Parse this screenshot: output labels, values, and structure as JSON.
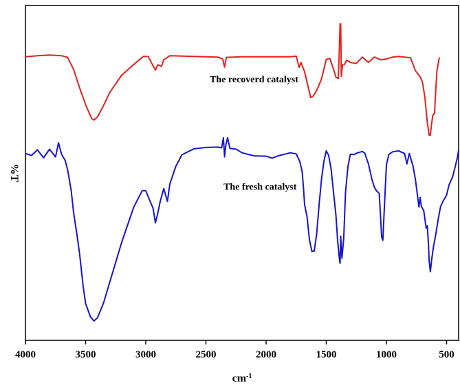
{
  "chart_data": {
    "type": "line",
    "title": "",
    "xlabel": "cm",
    "xlabel_superscript": "-1",
    "ylabel": "%T",
    "xlim": [
      4000,
      400
    ],
    "x_reversed": true,
    "y_ticks_shown": false,
    "grid": false,
    "legend": "none",
    "x_ticks": [
      4000,
      3500,
      3000,
      2500,
      2000,
      1500,
      1000,
      500
    ],
    "x_tick_labels": [
      "4000",
      "3500",
      "3000",
      "2500",
      "2000",
      "1500",
      "1000",
      "500"
    ],
    "ylim": [
      0,
      100
    ],
    "annotations": [
      {
        "text": "The recoverd catalyst",
        "x": 2100,
        "y": 77
      },
      {
        "text": "The fresh catalyst",
        "x": 2050,
        "y": 45
      }
    ],
    "series": [
      {
        "color": "#e8201c",
        "points": [
          [
            4000,
            84.7
          ],
          [
            3900,
            85.0
          ],
          [
            3800,
            85.2
          ],
          [
            3700,
            85.0
          ],
          [
            3650,
            84.5
          ],
          [
            3600,
            80.9
          ],
          [
            3550,
            75.4
          ],
          [
            3500,
            70.4
          ],
          [
            3450,
            66.2
          ],
          [
            3430,
            65.8
          ],
          [
            3400,
            66.8
          ],
          [
            3350,
            70.2
          ],
          [
            3300,
            74.0
          ],
          [
            3200,
            79.2
          ],
          [
            3100,
            82.4
          ],
          [
            3020,
            84.8
          ],
          [
            2980,
            84.8
          ],
          [
            2950,
            82.7
          ],
          [
            2920,
            80.7
          ],
          [
            2900,
            82.3
          ],
          [
            2870,
            81.8
          ],
          [
            2850,
            83.8
          ],
          [
            2800,
            85.0
          ],
          [
            2600,
            84.8
          ],
          [
            2400,
            84.6
          ],
          [
            2360,
            84.0
          ],
          [
            2345,
            81.6
          ],
          [
            2330,
            84.5
          ],
          [
            2200,
            84.7
          ],
          [
            2000,
            84.7
          ],
          [
            1800,
            84.7
          ],
          [
            1750,
            84.9
          ],
          [
            1725,
            81.5
          ],
          [
            1710,
            83.0
          ],
          [
            1680,
            80.2
          ],
          [
            1650,
            75.6
          ],
          [
            1630,
            72.5
          ],
          [
            1610,
            72.9
          ],
          [
            1590,
            74.0
          ],
          [
            1570,
            75.4
          ],
          [
            1540,
            78.0
          ],
          [
            1500,
            83.9
          ],
          [
            1470,
            84.2
          ],
          [
            1440,
            81.0
          ],
          [
            1420,
            78.6
          ],
          [
            1400,
            78.2
          ],
          [
            1395,
            83.0
          ],
          [
            1385,
            94.5
          ],
          [
            1380,
            94.5
          ],
          [
            1375,
            78.8
          ],
          [
            1365,
            82.3
          ],
          [
            1350,
            82.3
          ],
          [
            1330,
            83.7
          ],
          [
            1300,
            83.0
          ],
          [
            1250,
            82.7
          ],
          [
            1200,
            84.6
          ],
          [
            1150,
            83.0
          ],
          [
            1100,
            84.6
          ],
          [
            1050,
            83.8
          ],
          [
            1000,
            84.0
          ],
          [
            950,
            84.6
          ],
          [
            900,
            84.8
          ],
          [
            850,
            84.6
          ],
          [
            800,
            84.4
          ],
          [
            760,
            80.6
          ],
          [
            720,
            78.7
          ],
          [
            700,
            77.0
          ],
          [
            680,
            72.5
          ],
          [
            660,
            65.0
          ],
          [
            645,
            61.3
          ],
          [
            635,
            61.2
          ],
          [
            625,
            64.5
          ],
          [
            615,
            67.2
          ],
          [
            600,
            67.9
          ],
          [
            590,
            75.0
          ],
          [
            580,
            80.6
          ],
          [
            560,
            84.5
          ]
        ]
      },
      {
        "color": "#1414d4",
        "points": [
          [
            4000,
            55.8
          ],
          [
            3950,
            55.2
          ],
          [
            3900,
            56.9
          ],
          [
            3850,
            54.5
          ],
          [
            3800,
            57.1
          ],
          [
            3750,
            54.8
          ],
          [
            3725,
            59.0
          ],
          [
            3700,
            55.6
          ],
          [
            3670,
            53.7
          ],
          [
            3650,
            51.0
          ],
          [
            3620,
            44.8
          ],
          [
            3600,
            38.2
          ],
          [
            3570,
            31.0
          ],
          [
            3550,
            25.8
          ],
          [
            3520,
            16.0
          ],
          [
            3500,
            11.0
          ],
          [
            3460,
            7.0
          ],
          [
            3430,
            5.8
          ],
          [
            3400,
            6.8
          ],
          [
            3350,
            11.3
          ],
          [
            3300,
            17.3
          ],
          [
            3200,
            29.3
          ],
          [
            3100,
            39.8
          ],
          [
            3030,
            44.7
          ],
          [
            3000,
            44.7
          ],
          [
            2970,
            42.0
          ],
          [
            2940,
            39.5
          ],
          [
            2920,
            35.1
          ],
          [
            2900,
            38.0
          ],
          [
            2880,
            41.5
          ],
          [
            2850,
            45.3
          ],
          [
            2820,
            41.5
          ],
          [
            2800,
            46.7
          ],
          [
            2750,
            52.0
          ],
          [
            2700,
            55.4
          ],
          [
            2600,
            57.2
          ],
          [
            2500,
            57.6
          ],
          [
            2400,
            57.7
          ],
          [
            2370,
            57.5
          ],
          [
            2355,
            60.5
          ],
          [
            2345,
            54.8
          ],
          [
            2335,
            58.3
          ],
          [
            2320,
            60.5
          ],
          [
            2300,
            57.3
          ],
          [
            2250,
            57.1
          ],
          [
            2200,
            56.0
          ],
          [
            2100,
            55.1
          ],
          [
            2000,
            55.0
          ],
          [
            1950,
            54.4
          ],
          [
            1900,
            55.1
          ],
          [
            1800,
            56.0
          ],
          [
            1750,
            55.7
          ],
          [
            1720,
            53.4
          ],
          [
            1700,
            50.3
          ],
          [
            1690,
            45.7
          ],
          [
            1680,
            40.5
          ],
          [
            1660,
            37.0
          ],
          [
            1640,
            30.1
          ],
          [
            1620,
            26.6
          ],
          [
            1600,
            26.7
          ],
          [
            1580,
            31.7
          ],
          [
            1560,
            40.3
          ],
          [
            1540,
            48.0
          ],
          [
            1520,
            53.4
          ],
          [
            1500,
            56.6
          ],
          [
            1480,
            55.2
          ],
          [
            1460,
            51.2
          ],
          [
            1440,
            44.3
          ],
          [
            1420,
            37.5
          ],
          [
            1405,
            29.5
          ],
          [
            1390,
            24.0
          ],
          [
            1385,
            23.0
          ],
          [
            1380,
            31.1
          ],
          [
            1370,
            24.5
          ],
          [
            1355,
            30.5
          ],
          [
            1340,
            44.2
          ],
          [
            1320,
            51.8
          ],
          [
            1300,
            55.6
          ],
          [
            1270,
            55.5
          ],
          [
            1240,
            56.0
          ],
          [
            1200,
            56.4
          ],
          [
            1180,
            55.9
          ],
          [
            1150,
            52.7
          ],
          [
            1120,
            48.0
          ],
          [
            1100,
            45.7
          ],
          [
            1080,
            44.5
          ],
          [
            1060,
            43.9
          ],
          [
            1050,
            37.5
          ],
          [
            1040,
            30.9
          ],
          [
            1030,
            29.9
          ],
          [
            1020,
            37.5
          ],
          [
            1000,
            52.5
          ],
          [
            980,
            55.5
          ],
          [
            950,
            56.3
          ],
          [
            900,
            56.6
          ],
          [
            850,
            55.8
          ],
          [
            830,
            52.7
          ],
          [
            810,
            55.8
          ],
          [
            780,
            52.2
          ],
          [
            760,
            48.3
          ],
          [
            740,
            42.7
          ],
          [
            730,
            39.8
          ],
          [
            720,
            42.7
          ],
          [
            710,
            40.0
          ],
          [
            690,
            38.7
          ],
          [
            670,
            33.5
          ],
          [
            660,
            34.2
          ],
          [
            650,
            28.0
          ],
          [
            645,
            23.8
          ],
          [
            635,
            20.5
          ],
          [
            625,
            23.8
          ],
          [
            610,
            27.8
          ],
          [
            590,
            31.7
          ],
          [
            570,
            36.2
          ],
          [
            550,
            40.0
          ],
          [
            530,
            41.5
          ],
          [
            500,
            43.4
          ],
          [
            480,
            46.4
          ],
          [
            450,
            48.9
          ],
          [
            430,
            51.7
          ],
          [
            410,
            54.7
          ],
          [
            400,
            56.8
          ]
        ]
      }
    ]
  }
}
